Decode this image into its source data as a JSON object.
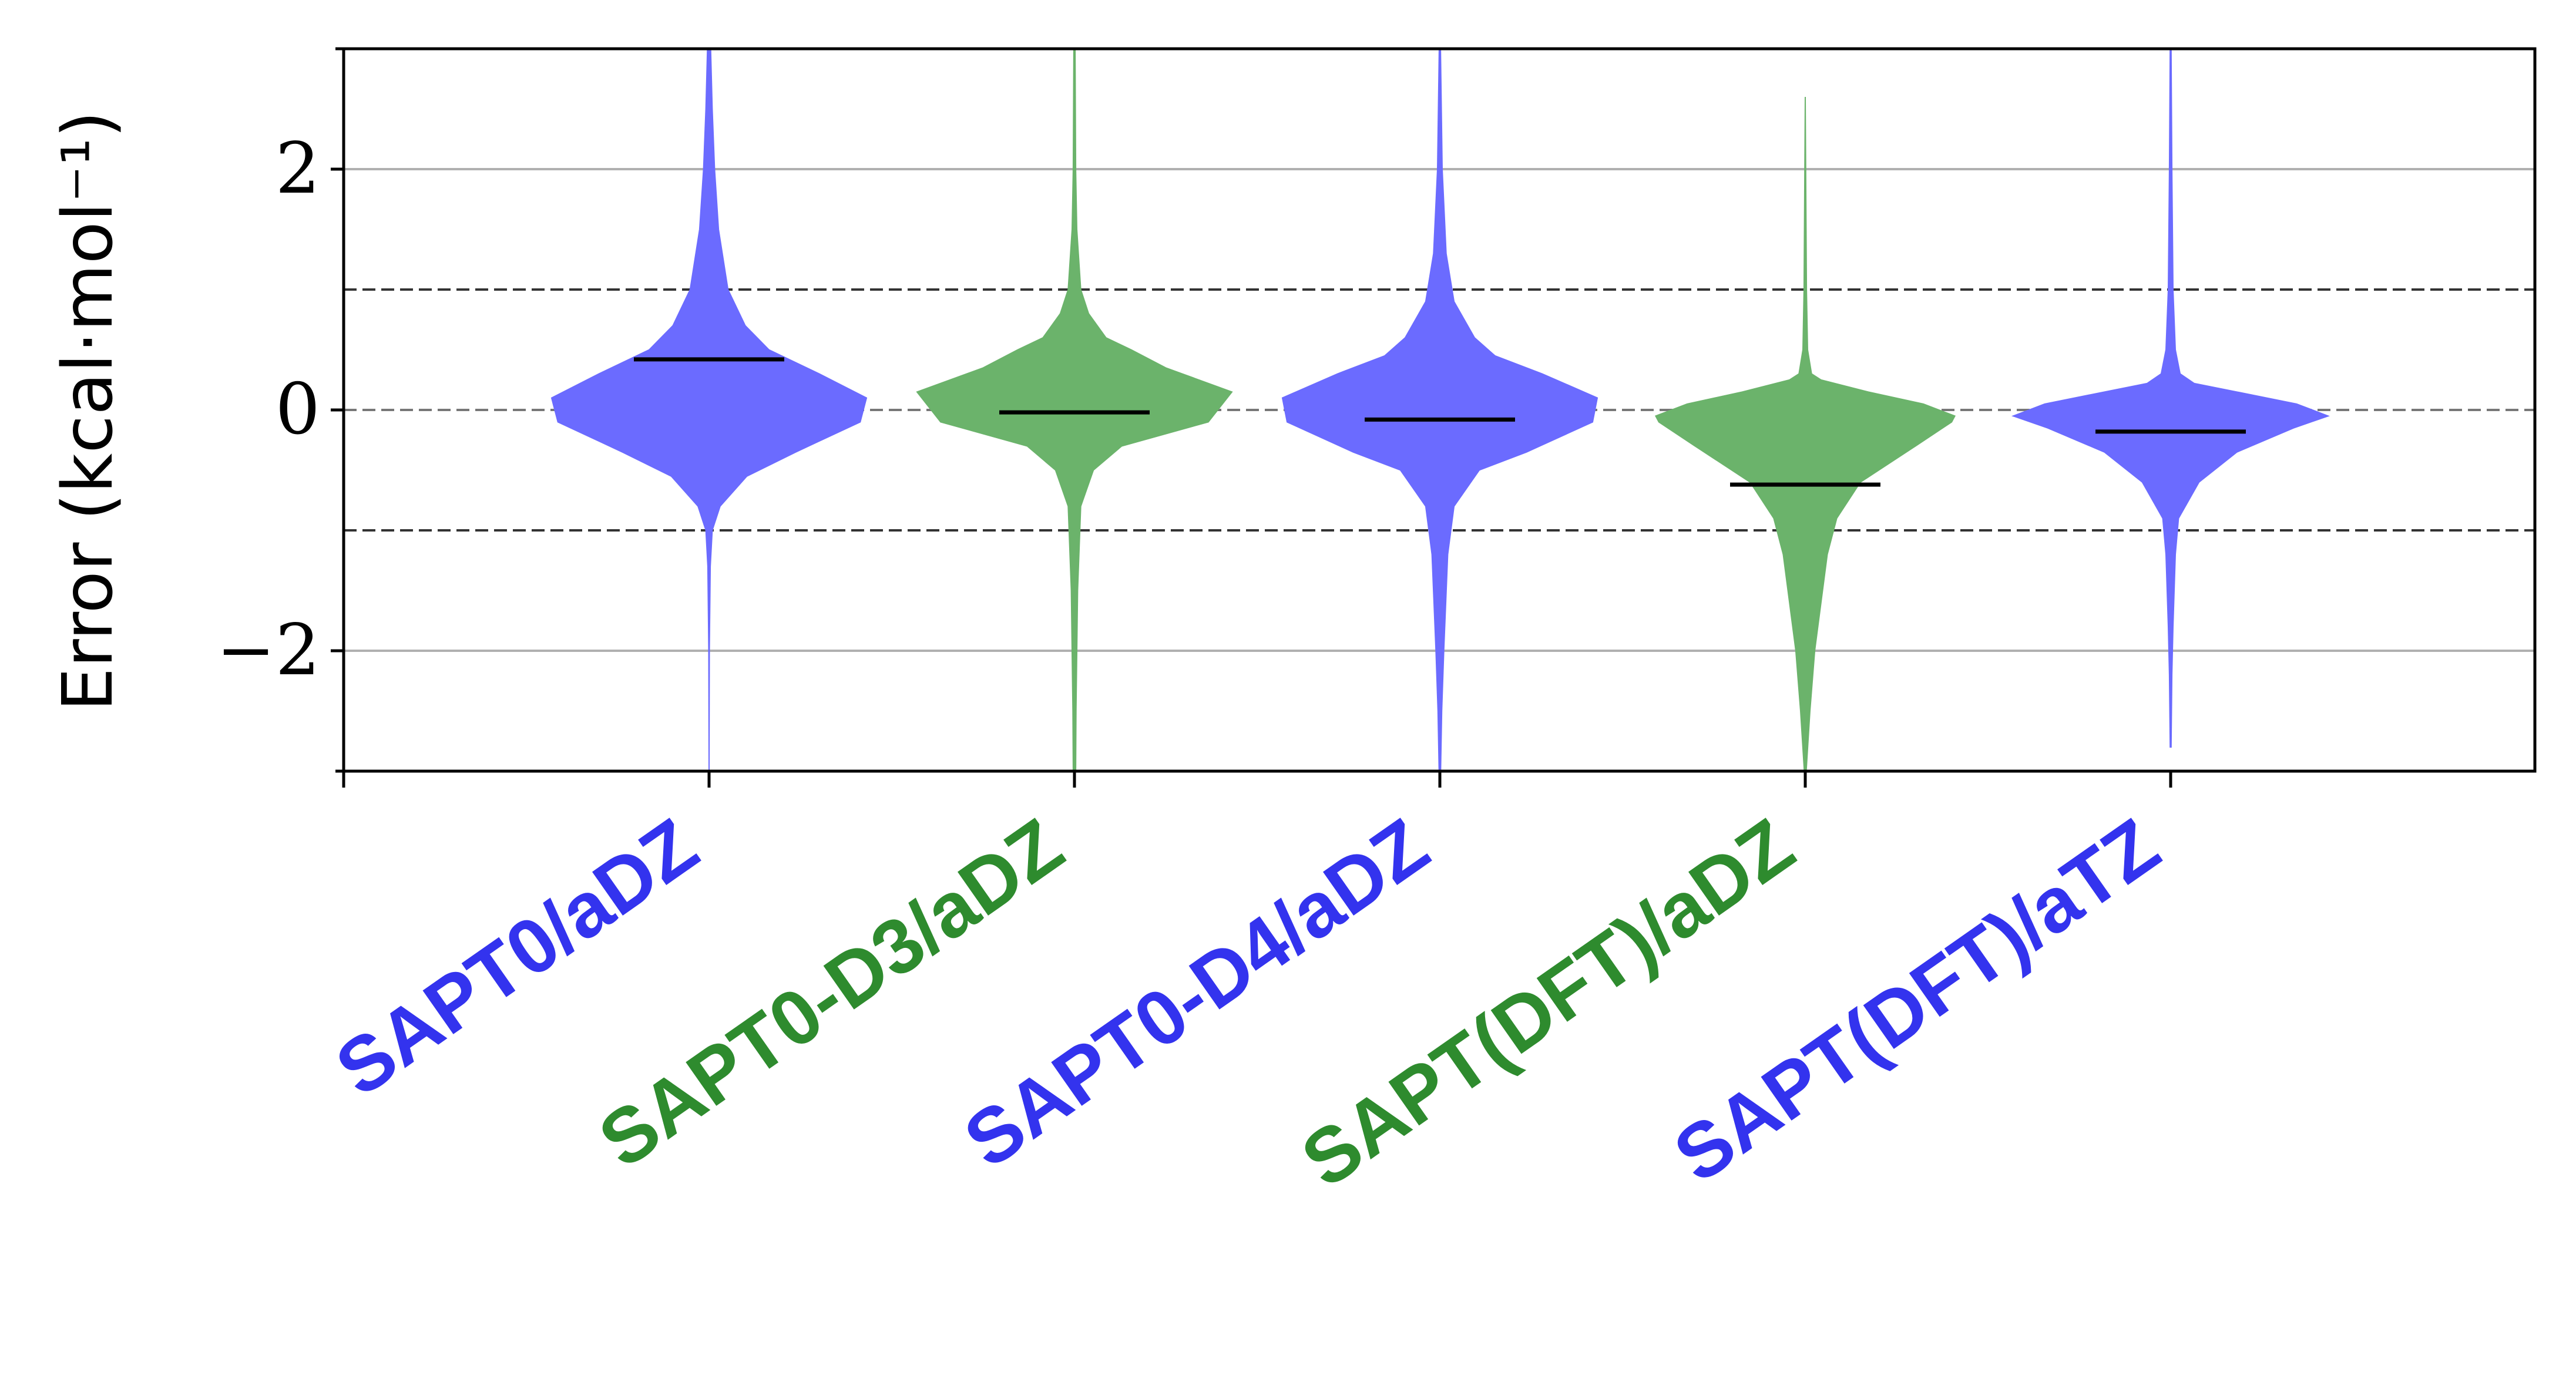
{
  "chart_data": {
    "type": "violin",
    "title": "",
    "xlabel": "",
    "ylabel": "Error (kcal·mol⁻¹)",
    "ylim": [
      -3,
      3
    ],
    "yticks": [
      -2,
      0,
      2
    ],
    "ytick_labels": [
      "−2",
      "0",
      "2"
    ],
    "grid": "horizontal at ±2",
    "reference_lines": [
      1,
      0,
      -1
    ],
    "categories": [
      "SAPT0/aDZ",
      "SAPT0-D3/aDZ",
      "SAPT0-D4/aDZ",
      "SAPT(DFT)/aDZ",
      "SAPT(DFT)/aTZ"
    ],
    "colors": [
      "#3333ee",
      "#2e8b2e",
      "#3333ee",
      "#2e8b2e",
      "#3333ee"
    ],
    "fill_colors": [
      "#6b6bff",
      "#6bb36b",
      "#6b6bff",
      "#6bb36b",
      "#6b6bff"
    ],
    "means": [
      0.42,
      -0.02,
      -0.08,
      -0.62,
      -0.18
    ],
    "series": [
      {
        "name": "SAPT0/aDZ",
        "profile": [
          [
            -3.0,
            0.0
          ],
          [
            -2.0,
            0.002
          ],
          [
            -1.3,
            0.008
          ],
          [
            -1.0,
            0.02
          ],
          [
            -0.8,
            0.07
          ],
          [
            -0.55,
            0.24
          ],
          [
            -0.35,
            0.55
          ],
          [
            -0.1,
            0.96
          ],
          [
            0.1,
            1.0
          ],
          [
            0.3,
            0.7
          ],
          [
            0.5,
            0.38
          ],
          [
            0.7,
            0.23
          ],
          [
            1.0,
            0.12
          ],
          [
            1.5,
            0.06
          ],
          [
            2.0,
            0.035
          ],
          [
            2.5,
            0.02
          ],
          [
            3.0,
            0.01
          ]
        ]
      },
      {
        "name": "SAPT0-D3/aDZ",
        "profile": [
          [
            -3.0,
            0.008
          ],
          [
            -2.5,
            0.01
          ],
          [
            -1.5,
            0.02
          ],
          [
            -0.8,
            0.04
          ],
          [
            -0.5,
            0.12
          ],
          [
            -0.3,
            0.3
          ],
          [
            -0.1,
            0.85
          ],
          [
            0.15,
            1.0
          ],
          [
            0.35,
            0.58
          ],
          [
            0.5,
            0.36
          ],
          [
            0.6,
            0.2
          ],
          [
            0.8,
            0.09
          ],
          [
            1.0,
            0.04
          ],
          [
            1.5,
            0.015
          ],
          [
            2.0,
            0.008
          ],
          [
            3.0,
            0.004
          ]
        ]
      },
      {
        "name": "SAPT0-D4/aDZ",
        "profile": [
          [
            -3.0,
            0.005
          ],
          [
            -2.5,
            0.012
          ],
          [
            -2.0,
            0.025
          ],
          [
            -1.2,
            0.05
          ],
          [
            -0.8,
            0.09
          ],
          [
            -0.5,
            0.25
          ],
          [
            -0.35,
            0.55
          ],
          [
            -0.1,
            0.97
          ],
          [
            0.1,
            1.0
          ],
          [
            0.3,
            0.65
          ],
          [
            0.45,
            0.35
          ],
          [
            0.6,
            0.22
          ],
          [
            0.9,
            0.09
          ],
          [
            1.3,
            0.04
          ],
          [
            2.0,
            0.015
          ],
          [
            3.0,
            0.004
          ]
        ]
      },
      {
        "name": "SAPT(DFT)/aDZ",
        "profile": [
          [
            -3.0,
            0.006
          ],
          [
            -2.5,
            0.03
          ],
          [
            -2.0,
            0.06
          ],
          [
            -1.6,
            0.1
          ],
          [
            -1.2,
            0.14
          ],
          [
            -0.9,
            0.2
          ],
          [
            -0.6,
            0.35
          ],
          [
            -0.3,
            0.7
          ],
          [
            -0.1,
            0.93
          ],
          [
            -0.05,
            0.95
          ],
          [
            0.05,
            0.75
          ],
          [
            0.15,
            0.4
          ],
          [
            0.25,
            0.1
          ],
          [
            0.3,
            0.04
          ],
          [
            0.5,
            0.015
          ],
          [
            1.0,
            0.008
          ],
          [
            2.0,
            0.003
          ],
          [
            2.6,
            0.0
          ]
        ]
      },
      {
        "name": "SAPT(DFT)/aTZ",
        "profile": [
          [
            -2.8,
            0.003
          ],
          [
            -2.2,
            0.008
          ],
          [
            -1.8,
            0.015
          ],
          [
            -1.2,
            0.03
          ],
          [
            -0.9,
            0.05
          ],
          [
            -0.6,
            0.18
          ],
          [
            -0.35,
            0.42
          ],
          [
            -0.15,
            0.78
          ],
          [
            -0.05,
            1.0
          ],
          [
            0.05,
            0.8
          ],
          [
            0.15,
            0.42
          ],
          [
            0.22,
            0.15
          ],
          [
            0.3,
            0.06
          ],
          [
            0.5,
            0.03
          ],
          [
            1.0,
            0.015
          ],
          [
            2.0,
            0.008
          ],
          [
            3.0,
            0.003
          ]
        ]
      }
    ]
  }
}
